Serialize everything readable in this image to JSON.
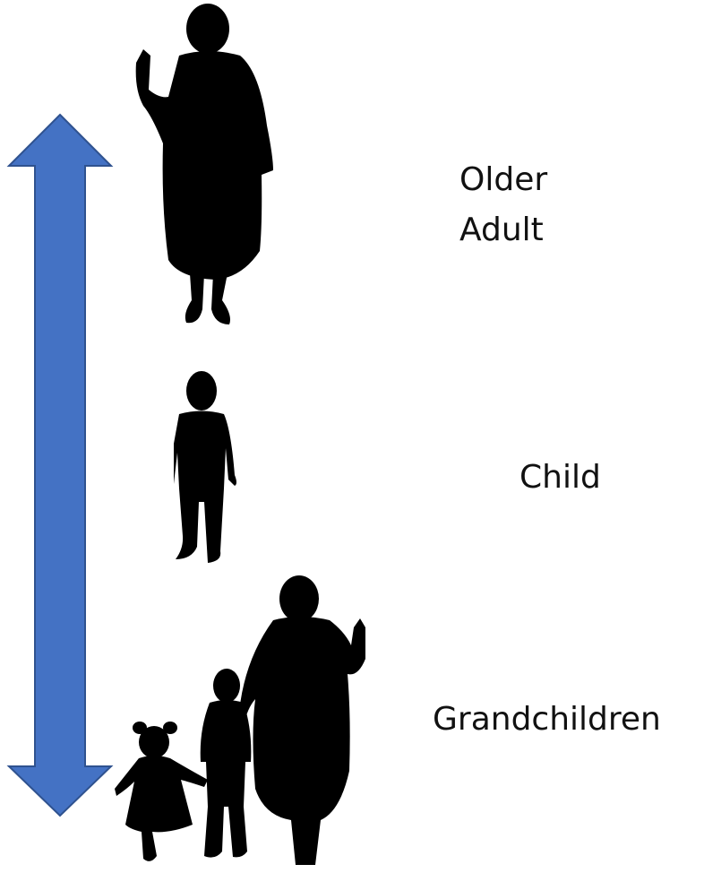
{
  "labels": [
    [
      "Older",
      "Adult"
    ],
    [
      "Child"
    ],
    [
      "Grandchildren"
    ]
  ]
}
